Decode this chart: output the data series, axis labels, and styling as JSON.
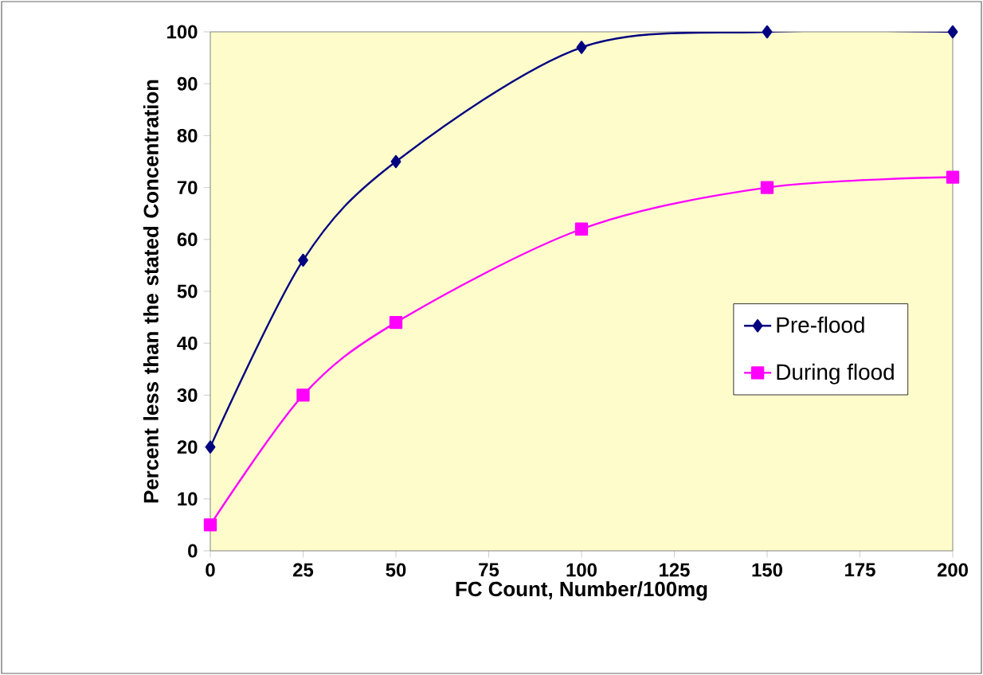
{
  "chart_data": {
    "type": "line",
    "xlabel": "FC Count,  Number/100mg",
    "ylabel": "Percent less than the stated Concentration",
    "x": [
      0,
      25,
      50,
      100,
      150,
      200
    ],
    "series": [
      {
        "name": "Pre-flood",
        "color": "#000080",
        "marker": "diamond",
        "values": [
          20,
          56,
          75,
          97,
          100,
          100
        ]
      },
      {
        "name": "During flood",
        "color": "#ff00ff",
        "marker": "square",
        "values": [
          5,
          30,
          44,
          62,
          70,
          72
        ]
      }
    ],
    "xlim": [
      0,
      200
    ],
    "ylim": [
      0,
      100
    ],
    "xticks": [
      0,
      25,
      50,
      75,
      100,
      125,
      150,
      175,
      200
    ],
    "yticks": [
      0,
      10,
      20,
      30,
      40,
      50,
      60,
      70,
      80,
      90,
      100
    ],
    "legend": "right"
  }
}
